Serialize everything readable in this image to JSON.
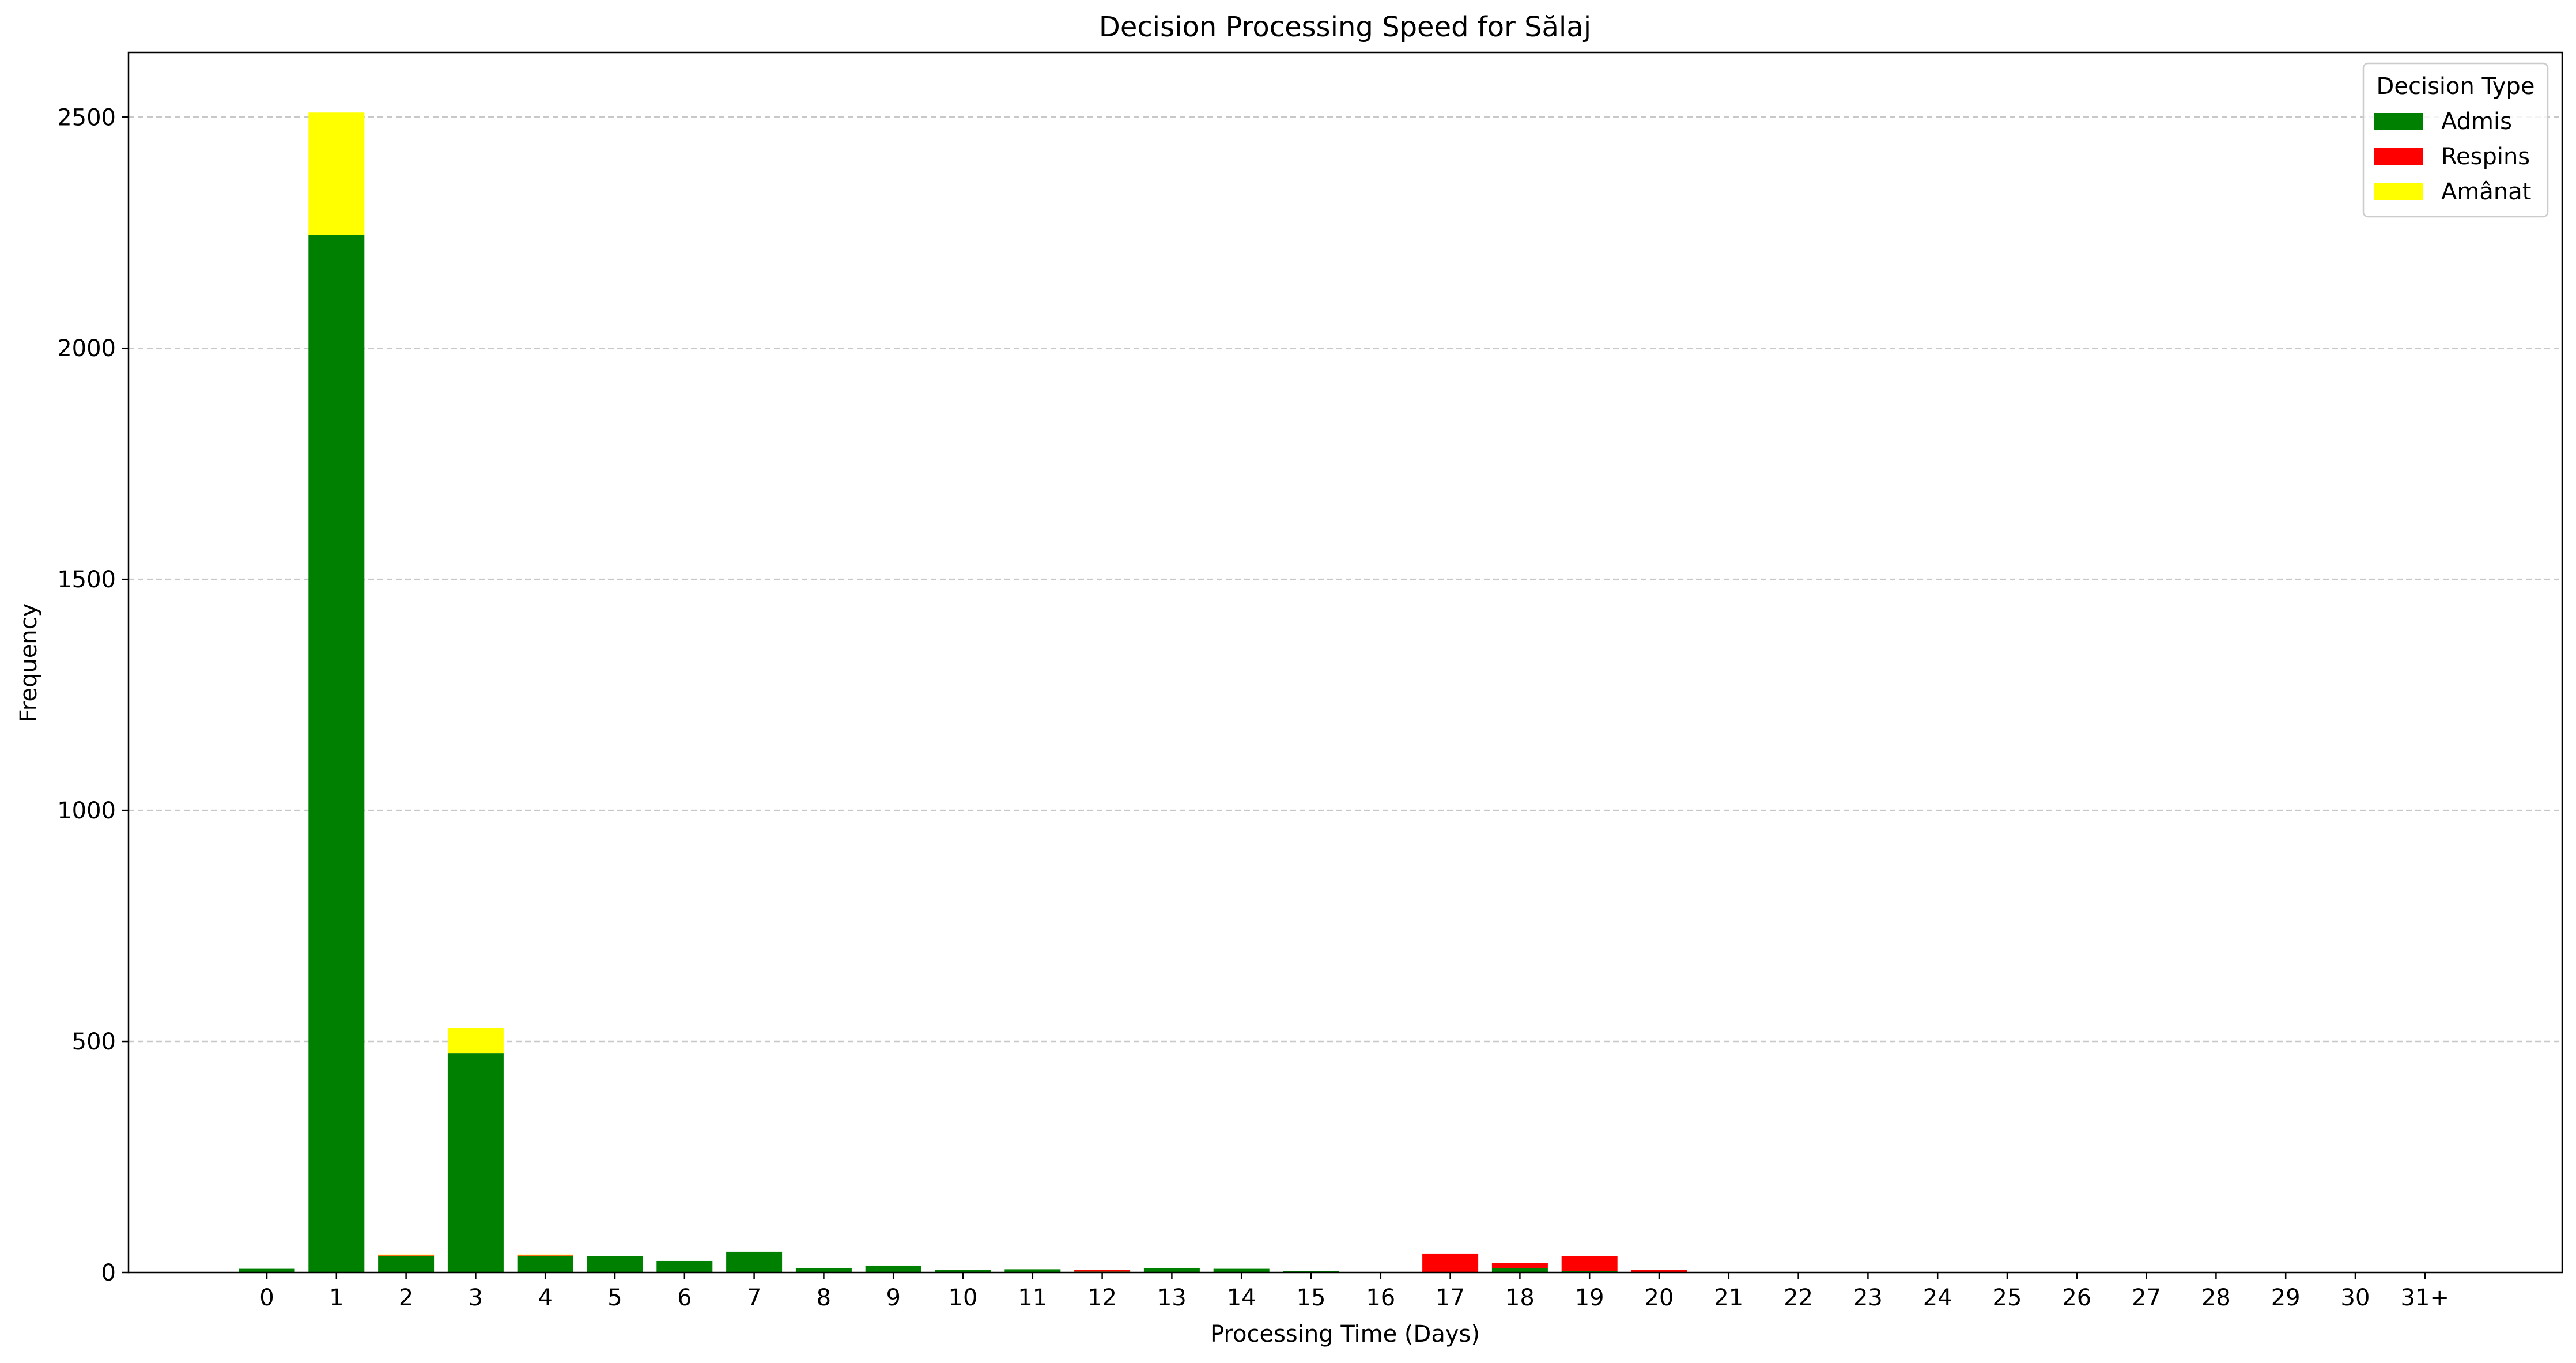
{
  "chart_data": {
    "type": "bar",
    "stacked": true,
    "title": "Decision Processing Speed for Sălaj",
    "xlabel": "Processing Time (Days)",
    "ylabel": "Frequency",
    "ylim": [
      0,
      2640
    ],
    "yticks": [
      0,
      500,
      1000,
      1500,
      2000,
      2500
    ],
    "grid": "y-dashed",
    "legend_position": "top-right",
    "legend_title": "Decision Type",
    "categories": [
      "0",
      "1",
      "2",
      "3",
      "4",
      "5",
      "6",
      "7",
      "8",
      "9",
      "10",
      "11",
      "12",
      "13",
      "14",
      "15",
      "16",
      "17",
      "18",
      "19",
      "20",
      "21",
      "22",
      "23",
      "24",
      "25",
      "26",
      "27",
      "28",
      "29",
      "30",
      "31+"
    ],
    "series": [
      {
        "name": "Admis",
        "color": "#008000",
        "values": [
          8,
          2245,
          35,
          475,
          35,
          35,
          25,
          45,
          10,
          15,
          5,
          7,
          2,
          10,
          8,
          3,
          0,
          0,
          10,
          3,
          0,
          0,
          0,
          0,
          0,
          0,
          0,
          0,
          0,
          0,
          0,
          0
        ]
      },
      {
        "name": "Respins",
        "color": "#ff0000",
        "values": [
          0,
          0,
          2,
          0,
          2,
          0,
          0,
          0,
          0,
          0,
          0,
          0,
          3,
          0,
          0,
          0,
          0,
          40,
          10,
          32,
          5,
          0,
          0,
          0,
          0,
          0,
          0,
          0,
          0,
          0,
          0,
          0
        ]
      },
      {
        "name": "Amânat",
        "color": "#ffff00",
        "values": [
          0,
          265,
          2,
          55,
          2,
          0,
          0,
          0,
          0,
          0,
          0,
          0,
          0,
          0,
          0,
          0,
          0,
          0,
          0,
          0,
          0,
          0,
          0,
          0,
          0,
          0,
          0,
          0,
          0,
          0,
          0,
          0
        ]
      }
    ]
  }
}
